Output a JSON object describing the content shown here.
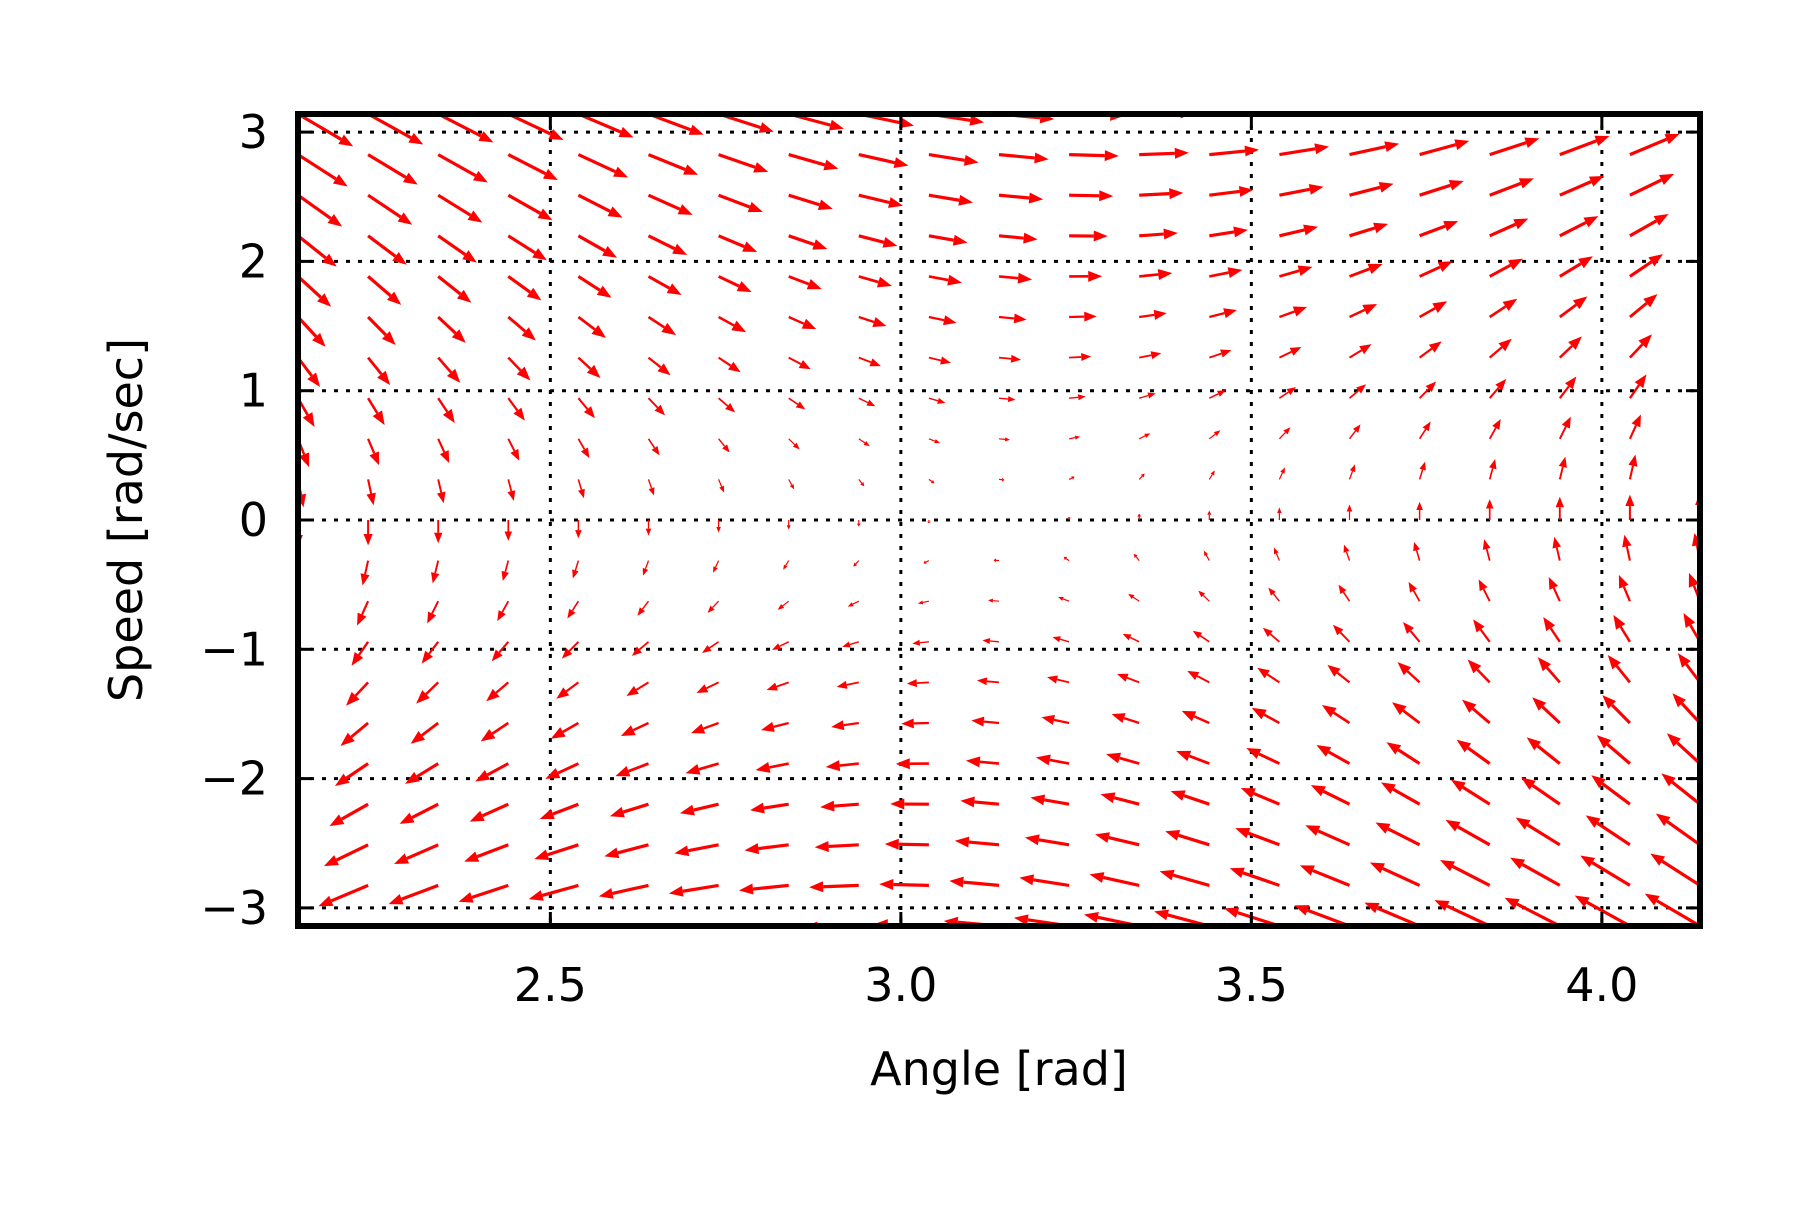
{
  "chart_data": {
    "type": "quiver",
    "title": "",
    "xlabel": "Angle [rad]",
    "ylabel": "Speed [rad/sec]",
    "xlim": [
      2.14,
      4.14
    ],
    "ylim": [
      -3.14,
      3.14
    ],
    "x_ticks": [
      2.5,
      3.0,
      3.5,
      4.0
    ],
    "x_tick_labels": [
      "2.5",
      "3.0",
      "3.5",
      "4.0"
    ],
    "y_ticks": [
      -3,
      -2,
      -1,
      0,
      1,
      2,
      3
    ],
    "y_tick_labels": [
      "−3",
      "−2",
      "−1",
      "0",
      "1",
      "2",
      "3"
    ],
    "grid": true,
    "field": {
      "equation_dx": "speed",
      "equation_dy": "-10 sin(angle) - 0.5 speed",
      "center": [
        3.1416,
        0
      ],
      "angle_grid": {
        "start": 2.14,
        "stop": 4.14,
        "count": 21
      },
      "speed_grid": {
        "start": -3.14,
        "stop": 3.14,
        "count": 21
      }
    },
    "colors": {
      "arrows": "#ff0000",
      "axes": "#000000",
      "grid": "#000000",
      "background": "#ffffff"
    }
  }
}
